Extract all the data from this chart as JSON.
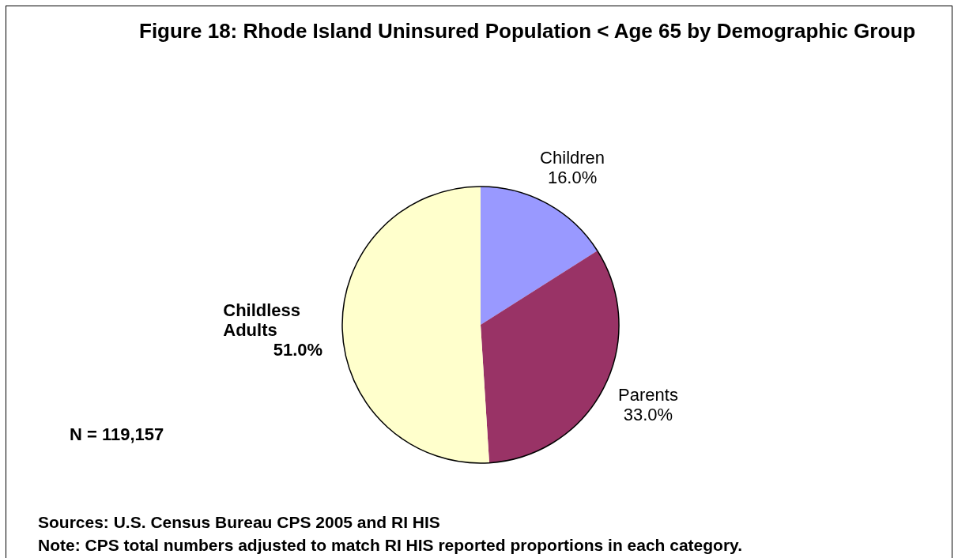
{
  "chart_data": {
    "type": "pie",
    "title": "Figure 18: Rhode Island Uninsured Population < Age 65 by Demographic Group",
    "categories": [
      "Children",
      "Parents",
      "Childless Adults"
    ],
    "values": [
      16.0,
      33.0,
      51.0
    ],
    "colors": [
      "#9999ff",
      "#993366",
      "#ffffcc"
    ],
    "value_labels": [
      "16.0%",
      "33.0%",
      "51.0%"
    ],
    "annotations": [
      "N = 119,157",
      "Sources: U.S. Census Bureau CPS 2005 and RI HIS",
      "Note: CPS total numbers adjusted to match RI HIS reported proportions in each category."
    ]
  }
}
